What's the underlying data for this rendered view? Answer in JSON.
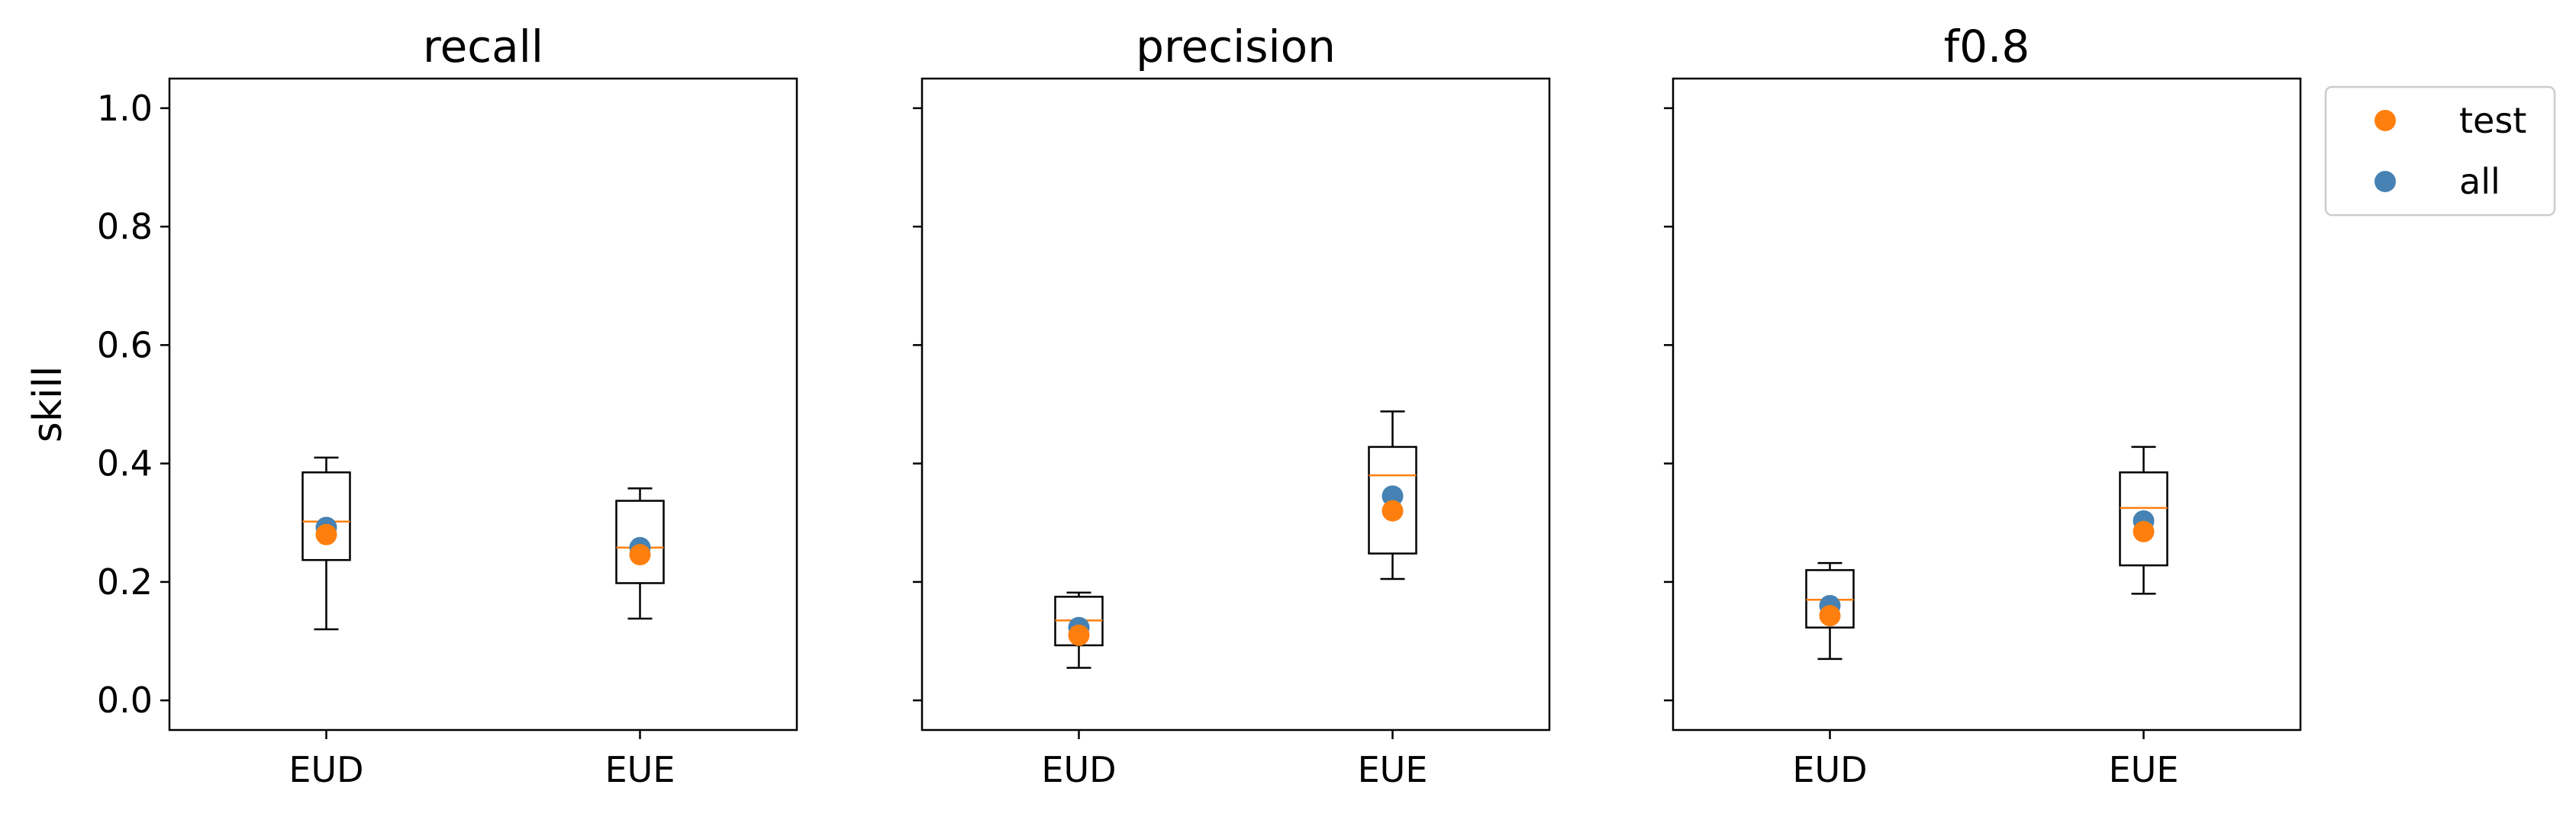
{
  "chart_data": {
    "type": "box",
    "ylabel": "skill",
    "ylim": [
      -0.05,
      1.05
    ],
    "yticks": [
      0.0,
      0.2,
      0.4,
      0.6,
      0.8,
      1.0
    ],
    "ytick_labels": [
      "0.0",
      "0.2",
      "0.4",
      "0.6",
      "0.8",
      "1.0"
    ],
    "categories": [
      "EUD",
      "EUE"
    ],
    "colors": {
      "test": "#ff7f0e",
      "all": "#4682b4",
      "median": "#ff7f0e",
      "box": "#000000"
    },
    "legend": {
      "position": "outside-top-right",
      "entries": [
        {
          "label": "test",
          "color": "#ff7f0e"
        },
        {
          "label": "all",
          "color": "#4682b4"
        }
      ]
    },
    "panels": [
      {
        "title": "recall",
        "boxes": [
          {
            "category": "EUD",
            "whisker_low": 0.12,
            "q1": 0.237,
            "median": 0.302,
            "q3": 0.385,
            "whisker_high": 0.41,
            "test": 0.28,
            "all": 0.292
          },
          {
            "category": "EUE",
            "whisker_low": 0.138,
            "q1": 0.198,
            "median": 0.258,
            "q3": 0.337,
            "whisker_high": 0.358,
            "test": 0.246,
            "all": 0.258
          }
        ]
      },
      {
        "title": "precision",
        "boxes": [
          {
            "category": "EUD",
            "whisker_low": 0.055,
            "q1": 0.093,
            "median": 0.135,
            "q3": 0.175,
            "whisker_high": 0.182,
            "test": 0.11,
            "all": 0.123
          },
          {
            "category": "EUE",
            "whisker_low": 0.205,
            "q1": 0.248,
            "median": 0.38,
            "q3": 0.428,
            "whisker_high": 0.488,
            "test": 0.32,
            "all": 0.345
          }
        ]
      },
      {
        "title": "f0.8",
        "boxes": [
          {
            "category": "EUD",
            "whisker_low": 0.07,
            "q1": 0.123,
            "median": 0.17,
            "q3": 0.22,
            "whisker_high": 0.232,
            "test": 0.143,
            "all": 0.16
          },
          {
            "category": "EUE",
            "whisker_low": 0.18,
            "q1": 0.228,
            "median": 0.325,
            "q3": 0.385,
            "whisker_high": 0.428,
            "test": 0.285,
            "all": 0.303
          }
        ]
      }
    ]
  }
}
